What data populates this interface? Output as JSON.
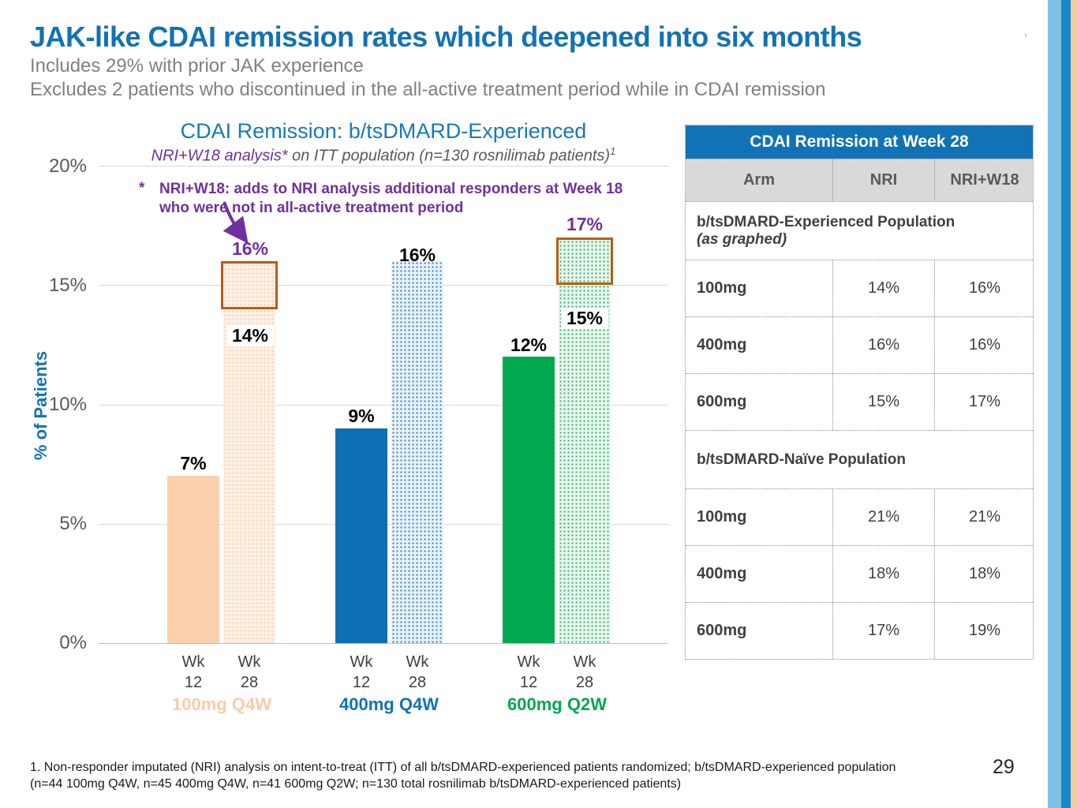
{
  "slide": {
    "title": "JAK-like CDAI remission rates which deepened into six months",
    "title_mark": "'",
    "subtitle_1": "Includes 29% with prior JAK experience",
    "subtitle_2": "Excludes 2 patients who discontinued in the all-active treatment period while in CDAI remission",
    "footnote_line1": "1. Non-responder imputated (NRI) analysis on intent-to-treat (ITT) of all b/tsDMARD-experienced patients randomized; b/tsDMARD-experienced population",
    "footnote_line2": "(n=44 100mg Q4W, n=45 400mg Q4W, n=41 600mg Q2W; n=130 total rosnilimab b/tsDMARD-experienced patients)",
    "page_number": "29"
  },
  "chart": {
    "title": "CDAI Remission: b/tsDMARD-Experienced",
    "subtitle_em": "NRI+W18 analysis*",
    "subtitle_rest": " on ITT population (n=130 rosnilimab patients)",
    "subtitle_sup": "1",
    "annotation_star": "*",
    "annotation_line1": "NRI+W18: adds to NRI analysis additional responders at Week 18",
    "annotation_line2": "who were not in all-active treatment period",
    "y_axis_title": "% of Patients",
    "y_ticks": [
      "20%",
      "15%",
      "10%",
      "5%",
      "0%"
    ],
    "x_ticks": [
      [
        "Wk",
        "12"
      ],
      [
        "Wk",
        "28"
      ]
    ]
  },
  "chart_data": {
    "type": "bar",
    "title": "CDAI Remission: b/tsDMARD-Experienced",
    "subtitle": "NRI+W18 analysis* on ITT population (n=130 rosnilimab patients)1",
    "ylabel": "% of Patients",
    "ylim": [
      0,
      20
    ],
    "gridlines": true,
    "y_tick_step": 5,
    "categories": [
      "Wk 12",
      "Wk 28"
    ],
    "groups": [
      {
        "label": "100mg Q4W",
        "bars": [
          {
            "category": "Wk 12",
            "value": 7,
            "label": "7%",
            "style": "solid"
          },
          {
            "category": "Wk 28",
            "value": 14,
            "label": "14%",
            "style": "dotted-pattern",
            "nri_w18_extension": {
              "value": 16,
              "label": "16%"
            }
          }
        ]
      },
      {
        "label": "400mg Q4W",
        "bars": [
          {
            "category": "Wk 12",
            "value": 9,
            "label": "9%",
            "style": "solid"
          },
          {
            "category": "Wk 28",
            "value": 16,
            "label": "16%",
            "style": "dotted-pattern"
          }
        ]
      },
      {
        "label": "600mg Q2W",
        "bars": [
          {
            "category": "Wk 12",
            "value": 12,
            "label": "12%",
            "style": "solid"
          },
          {
            "category": "Wk 28",
            "value": 15,
            "label": "15%",
            "style": "dotted-pattern",
            "nri_w18_extension": {
              "value": 17,
              "label": "17%"
            }
          }
        ]
      }
    ]
  },
  "table": {
    "title": "CDAI Remission at Week 28",
    "columns": [
      "Arm",
      "NRI",
      "NRI+W18"
    ],
    "sections": [
      {
        "heading": "b/tsDMARD-Experienced Population",
        "heading_note": "(as graphed)",
        "rows": [
          {
            "arm": "100mg",
            "nri": "14%",
            "nri_w18": "16%"
          },
          {
            "arm": "400mg",
            "nri": "16%",
            "nri_w18": "16%"
          },
          {
            "arm": "600mg",
            "nri": "15%",
            "nri_w18": "17%"
          }
        ]
      },
      {
        "heading": "b/tsDMARD-Naïve Population",
        "heading_note": "",
        "rows": [
          {
            "arm": "100mg",
            "nri": "21%",
            "nri_w18": "21%"
          },
          {
            "arm": "400mg",
            "nri": "18%",
            "nri_w18": "18%"
          },
          {
            "arm": "600mg",
            "nri": "17%",
            "nri_w18": "19%"
          }
        ]
      }
    ]
  },
  "colors": {
    "accent_blue": "#1272B5",
    "purple": "#7030A0",
    "peach_solid": "#FBD0AC",
    "blue_solid": "#0E6FB4",
    "green_solid": "#00A84F",
    "extension_box_border": "#C05A11",
    "subtitle_gray": "#808080",
    "stripe_light_blue": "#7FC2E5",
    "stripe_blue": "#1A87C8",
    "stripe_peach": "#F6CB9B"
  }
}
